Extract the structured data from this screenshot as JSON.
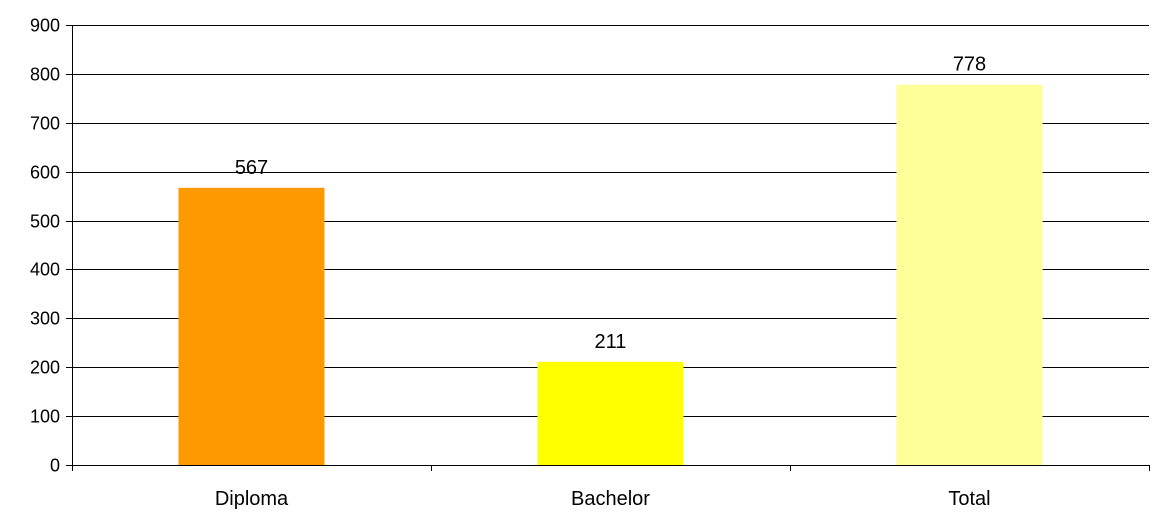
{
  "chart_data": {
    "type": "bar",
    "title": "",
    "xlabel": "",
    "ylabel": "",
    "categories": [
      "Diploma",
      "Bachelor",
      "Total"
    ],
    "values": [
      567,
      211,
      778
    ],
    "data_labels": [
      "567",
      "211",
      "778"
    ],
    "bar_colors": [
      "#ff9900",
      "#ffff00",
      "#ffff99"
    ],
    "ylim": [
      0,
      900
    ],
    "yticks": [
      0,
      100,
      200,
      300,
      400,
      500,
      600,
      700,
      800,
      900
    ],
    "ytick_labels": [
      "0",
      "100",
      "200",
      "300",
      "400",
      "500",
      "600",
      "700",
      "800",
      "900"
    ],
    "grid": true,
    "legend": "none"
  }
}
